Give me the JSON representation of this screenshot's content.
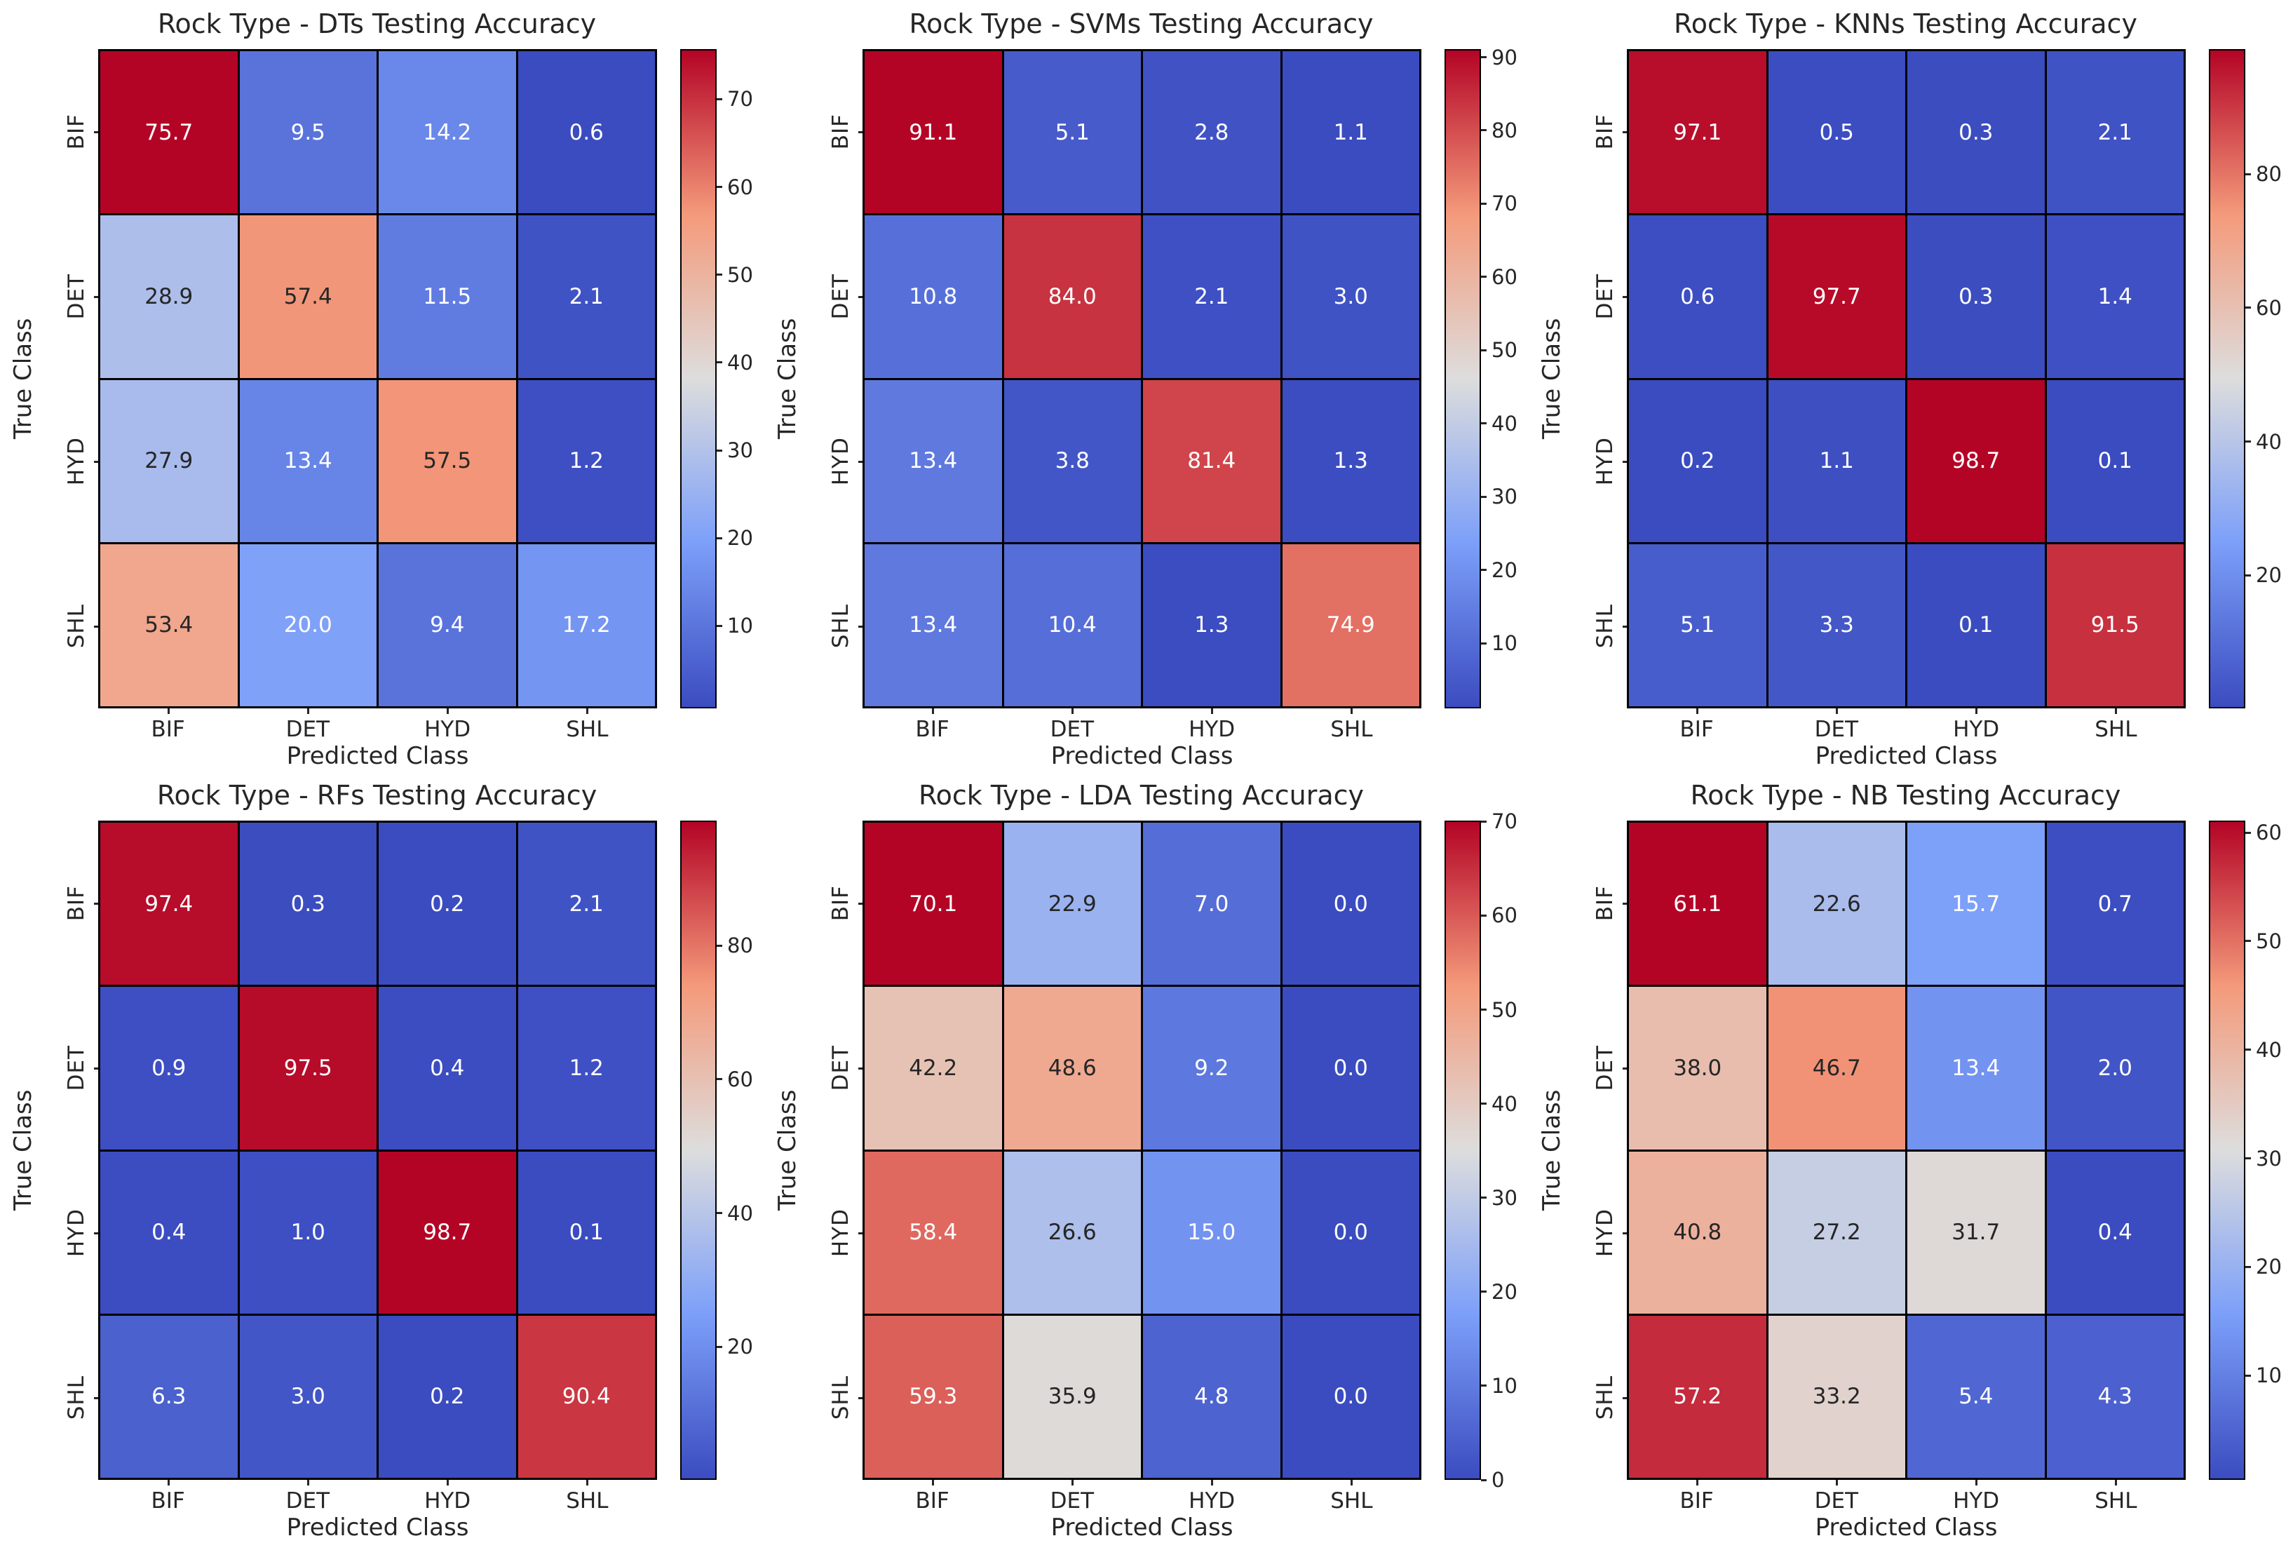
{
  "figure": {
    "background": "#ffffff",
    "xlabel": "Predicted Class",
    "ylabel": "True Class",
    "classes": [
      "BIF",
      "DET",
      "HYD",
      "SHL"
    ]
  },
  "colormap": {
    "name": "coolwarm",
    "annot_dark": "#262626",
    "annot_light": "#ffffff",
    "annot_lum_threshold": 0.39,
    "anchors": [
      {
        "t": 0.0,
        "rgb": [
          59,
          76,
          192
        ]
      },
      {
        "t": 0.25,
        "rgb": [
          124,
          159,
          249
        ]
      },
      {
        "t": 0.5,
        "rgb": [
          221,
          221,
          221
        ]
      },
      {
        "t": 0.75,
        "rgb": [
          244,
          154,
          123
        ]
      },
      {
        "t": 1.0,
        "rgb": [
          180,
          4,
          38
        ]
      }
    ]
  },
  "chart_data": [
    {
      "type": "heatmap",
      "title": "Rock Type - DTs Testing Accuracy",
      "xlabel": "Predicted Class",
      "ylabel": "True Class",
      "rows": [
        "BIF",
        "DET",
        "HYD",
        "SHL"
      ],
      "cols": [
        "BIF",
        "DET",
        "HYD",
        "SHL"
      ],
      "values": [
        [
          75.7,
          9.5,
          14.2,
          0.6
        ],
        [
          28.9,
          57.4,
          11.5,
          2.1
        ],
        [
          27.9,
          13.4,
          57.5,
          1.2
        ],
        [
          53.4,
          20.0,
          9.4,
          17.2
        ]
      ],
      "vmin": 0.6,
      "vmax": 75.7,
      "colorbar_ticks": [
        10,
        20,
        30,
        40,
        50,
        60,
        70
      ]
    },
    {
      "type": "heatmap",
      "title": "Rock Type - SVMs Testing Accuracy",
      "xlabel": "Predicted Class",
      "ylabel": "True Class",
      "rows": [
        "BIF",
        "DET",
        "HYD",
        "SHL"
      ],
      "cols": [
        "BIF",
        "DET",
        "HYD",
        "SHL"
      ],
      "values": [
        [
          91.1,
          5.1,
          2.8,
          1.1
        ],
        [
          10.8,
          84.0,
          2.1,
          3.0
        ],
        [
          13.4,
          3.8,
          81.4,
          1.3
        ],
        [
          13.4,
          10.4,
          1.3,
          74.9
        ]
      ],
      "vmin": 1.1,
      "vmax": 91.1,
      "colorbar_ticks": [
        10,
        20,
        30,
        40,
        50,
        60,
        70,
        80,
        90
      ]
    },
    {
      "type": "heatmap",
      "title": "Rock Type - KNNs Testing Accuracy",
      "xlabel": "Predicted Class",
      "ylabel": "True Class",
      "rows": [
        "BIF",
        "DET",
        "HYD",
        "SHL"
      ],
      "cols": [
        "BIF",
        "DET",
        "HYD",
        "SHL"
      ],
      "values": [
        [
          97.1,
          0.5,
          0.3,
          2.1
        ],
        [
          0.6,
          97.7,
          0.3,
          1.4
        ],
        [
          0.2,
          1.1,
          98.7,
          0.1
        ],
        [
          5.1,
          3.3,
          0.1,
          91.5
        ]
      ],
      "vmin": 0.1,
      "vmax": 98.7,
      "colorbar_ticks": [
        20,
        40,
        60,
        80
      ]
    },
    {
      "type": "heatmap",
      "title": "Rock Type - RFs Testing Accuracy",
      "xlabel": "Predicted Class",
      "ylabel": "True Class",
      "rows": [
        "BIF",
        "DET",
        "HYD",
        "SHL"
      ],
      "cols": [
        "BIF",
        "DET",
        "HYD",
        "SHL"
      ],
      "values": [
        [
          97.4,
          0.3,
          0.2,
          2.1
        ],
        [
          0.9,
          97.5,
          0.4,
          1.2
        ],
        [
          0.4,
          1.0,
          98.7,
          0.1
        ],
        [
          6.3,
          3.0,
          0.2,
          90.4
        ]
      ],
      "vmin": 0.1,
      "vmax": 98.7,
      "colorbar_ticks": [
        20,
        40,
        60,
        80
      ]
    },
    {
      "type": "heatmap",
      "title": "Rock Type - LDA Testing Accuracy",
      "xlabel": "Predicted Class",
      "ylabel": "True Class",
      "rows": [
        "BIF",
        "DET",
        "HYD",
        "SHL"
      ],
      "cols": [
        "BIF",
        "DET",
        "HYD",
        "SHL"
      ],
      "values": [
        [
          70.1,
          22.9,
          7.0,
          0.0
        ],
        [
          42.2,
          48.6,
          9.2,
          0.0
        ],
        [
          58.4,
          26.6,
          15.0,
          0.0
        ],
        [
          59.3,
          35.9,
          4.8,
          0.0
        ]
      ],
      "vmin": 0.0,
      "vmax": 70.1,
      "colorbar_ticks": [
        0,
        10,
        20,
        30,
        40,
        50,
        60,
        70
      ]
    },
    {
      "type": "heatmap",
      "title": "Rock Type - NB Testing Accuracy",
      "xlabel": "Predicted Class",
      "ylabel": "True Class",
      "rows": [
        "BIF",
        "DET",
        "HYD",
        "SHL"
      ],
      "cols": [
        "BIF",
        "DET",
        "HYD",
        "SHL"
      ],
      "values": [
        [
          61.1,
          22.6,
          15.7,
          0.7
        ],
        [
          38.0,
          46.7,
          13.4,
          2.0
        ],
        [
          40.8,
          27.2,
          31.7,
          0.4
        ],
        [
          57.2,
          33.2,
          5.4,
          4.3
        ]
      ],
      "vmin": 0.4,
      "vmax": 61.1,
      "colorbar_ticks": [
        10,
        20,
        30,
        40,
        50,
        60
      ]
    }
  ]
}
